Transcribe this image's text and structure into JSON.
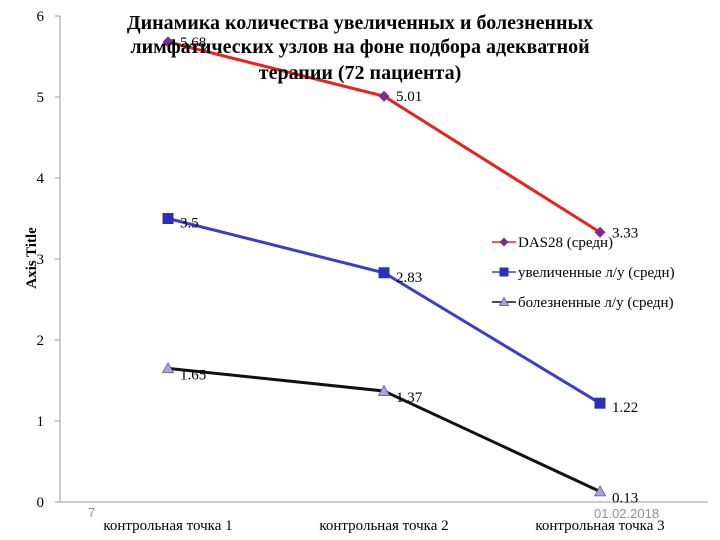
{
  "chart_data": {
    "type": "line",
    "title_lines": [
      "Динамика количества увеличенных и болезненных",
      "лимфатических узлов на фоне подбора адекватной",
      "терапии (72 пациента)"
    ],
    "ylabel": "Axis Title",
    "xlabel": "",
    "categories": [
      "контрольная точка 1",
      "контрольная точка 2",
      "контрольная точка 3"
    ],
    "ylim": [
      0,
      6
    ],
    "yticks": [
      "0",
      "1",
      "2",
      "3",
      "4",
      "5",
      "6"
    ],
    "grid": false,
    "legend_position": "right",
    "series": [
      {
        "name": "DAS28 (средн)",
        "values": [
          5.68,
          5.01,
          3.33
        ],
        "labels": [
          "5.68",
          "5.01",
          "3.33"
        ],
        "color": "#e8231b",
        "marker": "diamond",
        "marker_color": "#7b2d8e"
      },
      {
        "name": "увеличенные л/у (средн)",
        "values": [
          3.5,
          2.83,
          1.22
        ],
        "labels": [
          "3.5",
          "2.83",
          "1.22"
        ],
        "color": "#3a3fc6",
        "marker": "square",
        "marker_color": "#2b30b8"
      },
      {
        "name": "болезненные л/у (средн)",
        "values": [
          1.65,
          1.37,
          0.13
        ],
        "labels": [
          "1.65",
          "1.37",
          "0.13"
        ],
        "color": "#111111",
        "marker": "triangle",
        "marker_color": "#a8a8d8"
      }
    ]
  },
  "footer": {
    "page_number": "7",
    "date": "01.02.2018"
  }
}
